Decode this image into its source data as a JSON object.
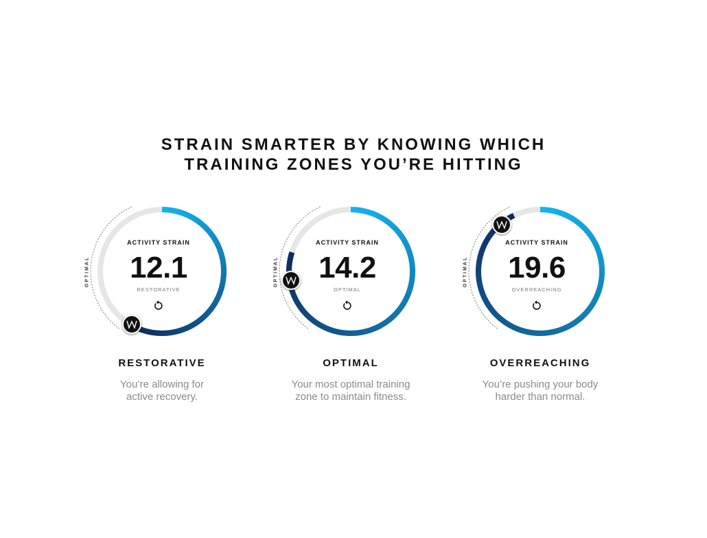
{
  "headline": {
    "line1": "STRAIN SMARTER BY KNOWING WHICH",
    "line2": "TRAINING ZONES YOU’RE HITTING"
  },
  "colors": {
    "track": "#e6e6e6",
    "gradient_start": "#12b4f0",
    "gradient_end": "#102a5c",
    "knob": "#111111",
    "text_dark": "#111111",
    "text_muted": "#8a8a8a"
  },
  "cards": [
    {
      "metric_label": "ACTIVITY STRAIN",
      "value": "12.1",
      "zone": "RESTORATIVE",
      "optimal_tag": "OPTIMAL",
      "title": "RESTORATIVE",
      "desc_line1": "You’re allowing for",
      "desc_line2": "active recovery.",
      "icon": "refresh-icon",
      "fill_fraction": 0.57
    },
    {
      "metric_label": "ACTIVITY STRAIN",
      "value": "14.2",
      "zone": "OPTIMAL",
      "optimal_tag": "OPTIMAL",
      "title": "OPTIMAL",
      "desc_line1": "Your most optimal training",
      "desc_line2": "zone to maintain fitness.",
      "icon": "refresh-icon",
      "fill_fraction": 0.8
    },
    {
      "metric_label": "ACTIVITY STRAIN",
      "value": "19.6",
      "zone": "OVERREACHING",
      "optimal_tag": "OPTIMAL",
      "title": "OVERREACHING",
      "desc_line1": "You’re pushing your body",
      "desc_line2": "harder than normal.",
      "icon": "refresh-icon",
      "fill_fraction": 0.93
    }
  ]
}
